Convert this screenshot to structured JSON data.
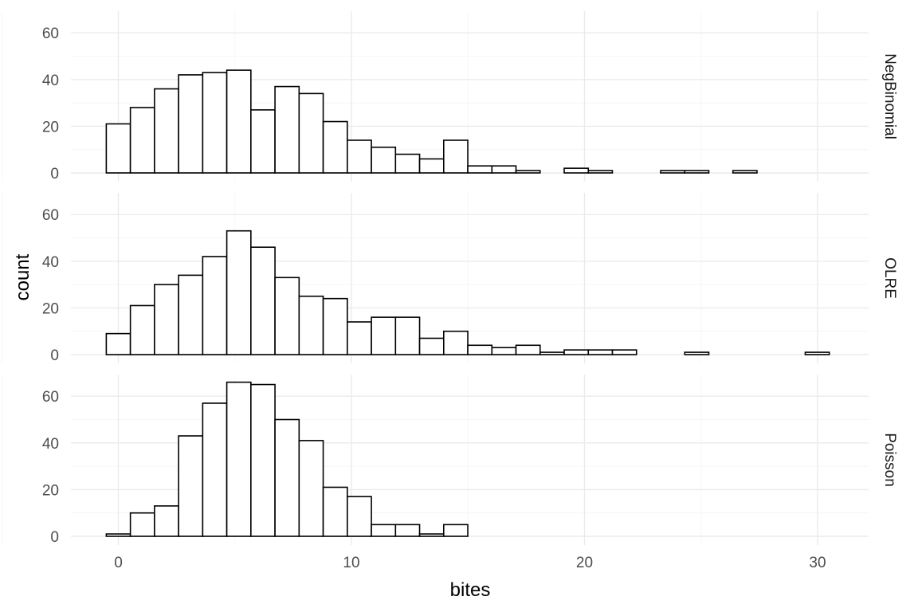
{
  "chart_data": {
    "type": "bar",
    "subtype": "faceted-histogram",
    "xlabel": "bites",
    "ylabel": "count",
    "xlim": [
      -0.5,
      30.5
    ],
    "ylim": [
      0,
      66
    ],
    "x_ticks": [
      0,
      10,
      20,
      30
    ],
    "y_ticks": [
      0,
      20,
      40,
      60
    ],
    "grid": true,
    "bin_width": 1.034,
    "bin_start": -0.517,
    "facets": [
      {
        "name": "NegBinomial",
        "values": [
          21,
          28,
          36,
          42,
          43,
          44,
          27,
          37,
          34,
          22,
          14,
          11,
          8,
          6,
          14,
          3,
          3,
          1,
          0,
          2,
          1,
          0,
          0,
          1,
          1,
          0,
          1,
          0,
          0,
          0
        ]
      },
      {
        "name": "OLRE",
        "values": [
          9,
          21,
          30,
          34,
          42,
          53,
          46,
          33,
          25,
          24,
          14,
          16,
          16,
          7,
          10,
          4,
          3,
          4,
          1,
          2,
          2,
          2,
          0,
          0,
          1,
          0,
          0,
          0,
          0,
          1
        ]
      },
      {
        "name": "Poisson",
        "values": [
          1,
          10,
          13,
          43,
          57,
          66,
          65,
          50,
          41,
          21,
          17,
          5,
          5,
          1,
          5,
          0,
          0,
          0,
          0,
          0,
          0,
          0,
          0,
          0,
          0,
          0,
          0,
          0,
          0,
          0
        ]
      }
    ]
  }
}
